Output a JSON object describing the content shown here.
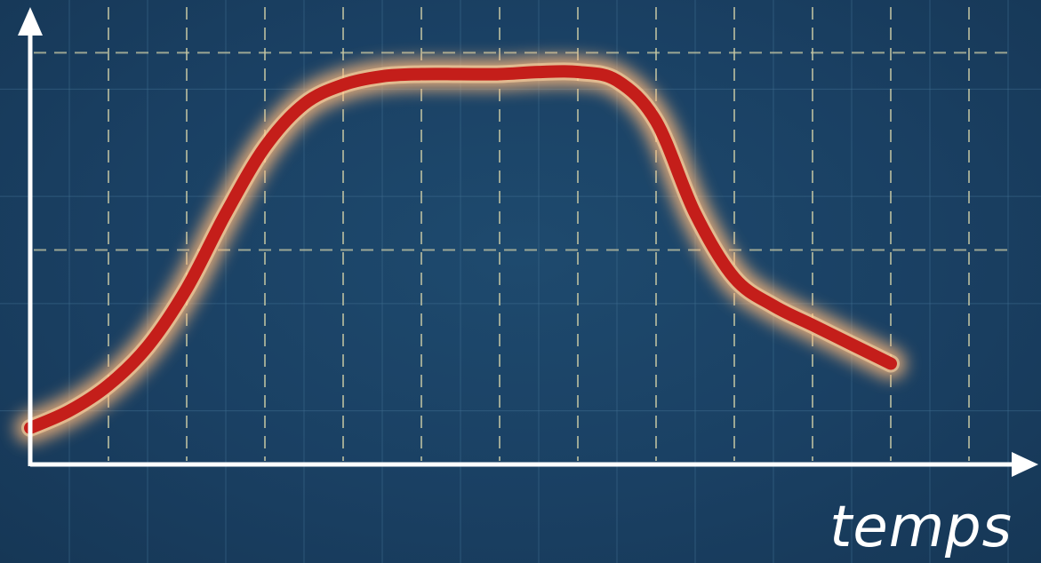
{
  "chart_data": {
    "type": "line",
    "title": "",
    "xlabel": "temps",
    "ylabel": "",
    "xlim": [
      0,
      12.5
    ],
    "ylim": [
      0,
      2.0
    ],
    "grid": true,
    "show_ticks": false,
    "series": [
      {
        "color": "#c41e1a",
        "x": [
          0,
          0.5,
          1,
          1.5,
          2,
          2.5,
          3,
          3.5,
          4,
          4.5,
          5,
          5.5,
          6,
          6.5,
          7,
          7.5,
          8,
          8.5,
          9,
          9.5,
          10,
          10.5,
          11
        ],
        "y": [
          0.17,
          0.25,
          0.37,
          0.55,
          0.82,
          1.17,
          1.48,
          1.68,
          1.77,
          1.81,
          1.82,
          1.82,
          1.82,
          1.83,
          1.83,
          1.79,
          1.6,
          1.17,
          0.87,
          0.74,
          0.65,
          0.56,
          0.47
        ]
      }
    ]
  },
  "colors": {
    "background": "#1a4063",
    "axis": "#ffffff",
    "major_grid": "#c8c9a5",
    "minor_grid": "#3f6d8f",
    "curve": "#c41e1a",
    "glow": "#ffb97a"
  }
}
